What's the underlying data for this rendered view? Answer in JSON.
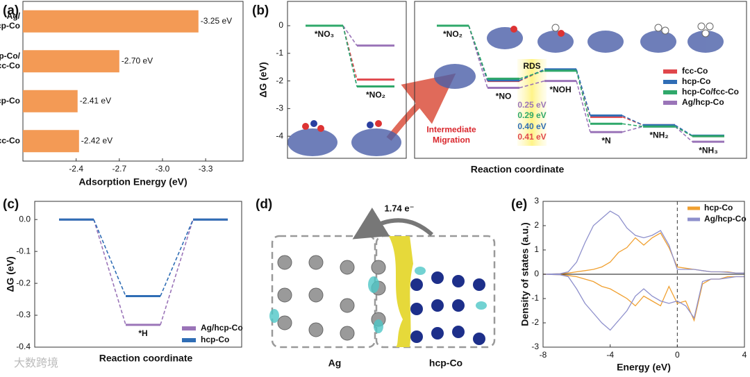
{
  "chart_data": [
    {
      "type": "bar",
      "orientation": "horizontal",
      "panel_label": "(a)",
      "categories": [
        "Ag/hcp-Co",
        "hcp-Co/fcc-Co",
        "hcp-Co",
        "fcc-Co"
      ],
      "values": [
        -3.25,
        -2.7,
        -2.41,
        -2.42
      ],
      "value_labels": [
        "-3.25 eV",
        "-2.70 eV",
        "-2.41 eV",
        "-2.42 eV"
      ],
      "color": "#f39a55",
      "xlabel": "Adsorption Energy (eV)",
      "xlim": [
        -2.03,
        -3.56
      ],
      "xticks": [
        -2.4,
        -2.7,
        {
          "value": -3,
          "label": "-3.0"
        },
        -3.3
      ]
    },
    {
      "type": "energy_diagram",
      "panel_label": "(b)",
      "ylabel": "ΔG (eV)",
      "categories": [
        "*NO₃",
        "*NO₂"
      ],
      "series": [
        {
          "name": "fcc-Co",
          "color": "#e0474c",
          "values": [
            0,
            -1.95
          ]
        },
        {
          "name": "hcp-Co",
          "color": "#2f6db5",
          "values": [
            0,
            -2.2
          ]
        },
        {
          "name": "hcp-Co/fcc-Co",
          "color": "#2fa86a",
          "values": [
            0,
            -2.2
          ]
        },
        {
          "name": "Ag/hcp-Co",
          "color": "#9a74b8",
          "values": [
            0,
            -0.72
          ]
        }
      ],
      "ylim": [
        0.88,
        -4.8
      ],
      "yticks": [
        0,
        -1,
        -2,
        -3,
        -4
      ]
    },
    {
      "type": "energy_diagram",
      "xlabel": "Reaction coordinate",
      "categories": [
        "*NO₂",
        "*NO",
        "*NOH",
        "*N",
        "*NH₂",
        "*NH₃"
      ],
      "series": [
        {
          "name": "fcc-Co",
          "color": "#e0474c",
          "values": [
            0,
            -2.0,
            -1.59,
            -3.3,
            -3.6,
            -4.0
          ]
        },
        {
          "name": "hcp-Co",
          "color": "#2f6db5",
          "values": [
            0,
            -1.98,
            -1.58,
            -3.25,
            -3.6,
            -3.98
          ]
        },
        {
          "name": "hcp-Co/fcc-Co",
          "color": "#2fa86a",
          "values": [
            0,
            -1.92,
            -1.63,
            -3.55,
            -3.65,
            -4.0
          ]
        },
        {
          "name": "Ag/hcp-Co",
          "color": "#9a74b8",
          "values": [
            0,
            -2.25,
            -2.0,
            -3.85,
            -3.65,
            -4.2
          ]
        }
      ],
      "annotations": [
        {
          "text": "RDS",
          "color": "#111111"
        },
        {
          "text": "0.25 eV",
          "color": "#9a74b8"
        },
        {
          "text": "0.29 eV",
          "color": "#2fa86a"
        },
        {
          "text": "0.40 eV",
          "color": "#2f6db5"
        },
        {
          "text": "0.41 eV",
          "color": "#e0474c"
        },
        {
          "text": "Intermediate Migration",
          "color": "#d9262c"
        }
      ],
      "ylim": [
        0.88,
        -4.8
      ]
    },
    {
      "type": "energy_diagram",
      "panel_label": "(c)",
      "ylabel": "ΔG (eV)",
      "xlabel": "Reaction coordinate",
      "categories": [
        null,
        "*H",
        null
      ],
      "series": [
        {
          "name": "Ag/hcp-Co",
          "color": "#9a74b8",
          "values": [
            0,
            -0.33,
            0
          ]
        },
        {
          "name": "hcp-Co",
          "color": "#2f6db5",
          "values": [
            0,
            -0.24,
            0
          ]
        }
      ],
      "ylim": [
        -0.4,
        0.057
      ],
      "yticks": [
        {
          "value": 0,
          "label": "0.0"
        },
        -0.1,
        -0.2,
        -0.3,
        -0.4
      ]
    },
    {
      "type": "line",
      "panel_label": "(e)",
      "xlabel": "Energy (eV)",
      "ylabel": "Density of states (a.u.)",
      "x": [
        -8,
        -7.5,
        -7,
        -6.5,
        -6,
        -5.5,
        -5,
        -4.5,
        -4,
        -3.5,
        -3,
        -2.5,
        -2,
        -1.5,
        -1,
        -0.5,
        0,
        0.5,
        1,
        1.5,
        2,
        2.5,
        3,
        3.5,
        4
      ],
      "series": [
        {
          "name": "hcp-Co",
          "color": "#f0a030",
          "values": [
            0,
            0.01,
            0.02,
            0.05,
            0.1,
            0.15,
            0.2,
            0.3,
            0.5,
            0.9,
            1.1,
            1.5,
            1.2,
            1.5,
            1.7,
            1.1,
            0.3,
            0.25,
            0.2,
            0.15,
            0.1,
            0.1,
            0.1,
            0.05,
            0.05
          ],
          "values_down": [
            0,
            -0.01,
            -0.02,
            -0.05,
            -0.1,
            -0.2,
            -0.3,
            -0.5,
            -0.6,
            -0.8,
            -1.0,
            -1.3,
            -0.9,
            -1.1,
            -1.3,
            -0.5,
            -1.2,
            -1.1,
            -1.9,
            -0.4,
            -0.2,
            -0.2,
            -0.1,
            -0.1,
            -0.1
          ]
        },
        {
          "name": "Ag/hcp-Co",
          "color": "#8e90cc",
          "values": [
            0,
            0.01,
            0.02,
            0.1,
            0.5,
            1.3,
            2.0,
            2.3,
            2.6,
            2.4,
            1.9,
            1.6,
            1.5,
            1.6,
            1.8,
            1.2,
            0.2,
            0.2,
            0.2,
            0.15,
            0.1,
            0.1,
            0.08,
            0.05,
            0.05
          ],
          "values_down": [
            0,
            -0.01,
            -0.02,
            -0.1,
            -0.6,
            -1.2,
            -1.6,
            -2.0,
            -2.3,
            -1.9,
            -1.5,
            -0.9,
            -0.6,
            -0.9,
            -1.1,
            -1.2,
            -1.1,
            -1.3,
            -1.8,
            -0.3,
            -0.2,
            -0.2,
            -0.15,
            -0.1,
            -0.1
          ]
        }
      ],
      "xlim": [
        -8,
        4
      ],
      "xticks": [
        -8,
        -4,
        0,
        4
      ],
      "ylim": [
        -3,
        3
      ],
      "yticks": [
        -3,
        -2,
        -1,
        0,
        1,
        2,
        3
      ],
      "legend": "upper right"
    }
  ],
  "panel_d": {
    "panel_label": "(d)",
    "annotation": "1.74 e⁻",
    "left_label": "Ag",
    "right_label": "hcp-Co"
  },
  "watermark": "大数跨境"
}
